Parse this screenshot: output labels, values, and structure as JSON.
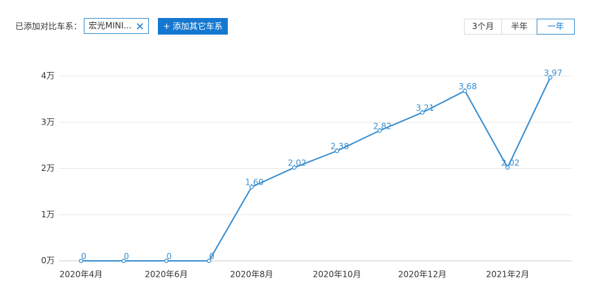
{
  "ui": {
    "compare_label": "已添加对比车系：",
    "selected_tag": "宏光MINI...",
    "add_button": "+ 添加其它车系",
    "ranges": [
      "3个月",
      "半年",
      "一年"
    ]
  },
  "chart_data": {
    "type": "line",
    "categories": [
      "2020年4月",
      null,
      "2020年6月",
      null,
      "2020年8月",
      null,
      "2020年10月",
      null,
      "2020年12月",
      null,
      "2021年2月",
      null
    ],
    "series": [
      {
        "name": "宏光MINI",
        "color": "#3a8fd0",
        "values": [
          0,
          0,
          0,
          0,
          1.6,
          2.02,
          2.38,
          2.82,
          3.21,
          3.68,
          2.02,
          3.97
        ],
        "value_labels": [
          "0",
          "0",
          "0",
          "0",
          "1.60",
          "2.02",
          "2.38",
          "2.82",
          "3.21",
          "3.68",
          "2.02",
          "3.97"
        ]
      }
    ],
    "ylim": [
      0,
      4
    ],
    "yticks": [
      {
        "value": 0,
        "label": "0万"
      },
      {
        "value": 1,
        "label": "1万"
      },
      {
        "value": 2,
        "label": "2万"
      },
      {
        "value": 3,
        "label": "3万"
      },
      {
        "value": 4,
        "label": "4万"
      }
    ],
    "grid": true
  }
}
